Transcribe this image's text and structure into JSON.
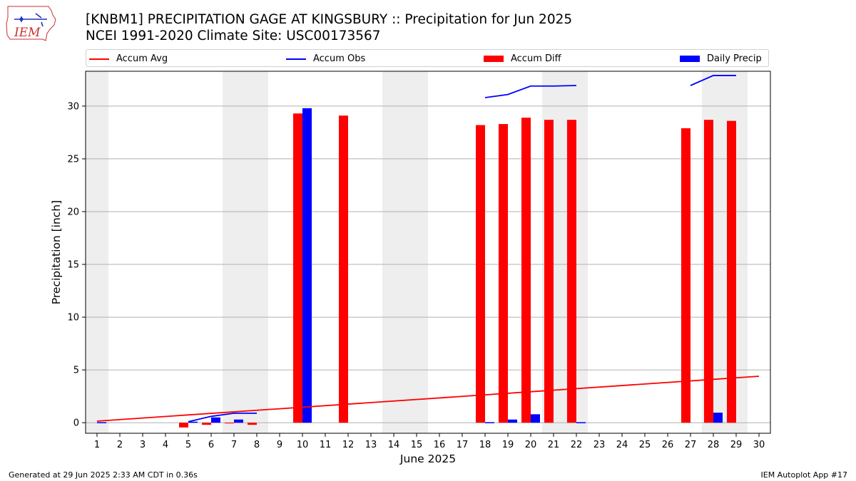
{
  "header": {
    "title_line1": "[KNBM1] PRECIPITATION GAGE AT KINGSBURY :: Precipitation for Jun 2025",
    "title_line2": "NCEI 1991-2020 Climate Site: USC00173567"
  },
  "logo": {
    "text": "IEM",
    "icon": "iem-iowa-logo"
  },
  "legend": {
    "items": [
      {
        "label": "Accum Avg",
        "kind": "line",
        "color": "#ff0000"
      },
      {
        "label": "Accum Obs",
        "kind": "line",
        "color": "#0000ff"
      },
      {
        "label": "Accum Diff",
        "kind": "bar",
        "color": "#ff0000"
      },
      {
        "label": "Daily Precip",
        "kind": "bar",
        "color": "#0000ff"
      }
    ]
  },
  "footer": {
    "left": "Generated at 29 Jun 2025 2:33 AM CDT in 0.36s",
    "right": "IEM Autoplot App #17"
  },
  "chart_data": {
    "type": "bar",
    "xlabel": "June 2025",
    "ylabel": "Precipitation [inch]",
    "xlim": [
      0.5,
      30.5
    ],
    "ylim": [
      -1.0,
      33.3
    ],
    "yticks": [
      0,
      5,
      10,
      15,
      20,
      25,
      30
    ],
    "xticks": [
      1,
      2,
      3,
      4,
      5,
      6,
      7,
      8,
      9,
      10,
      11,
      12,
      13,
      14,
      15,
      16,
      17,
      18,
      19,
      20,
      21,
      22,
      23,
      24,
      25,
      26,
      27,
      28,
      29,
      30
    ],
    "grid": "horizontal",
    "legend_position": "top",
    "weekend_shading": [
      [
        0.5,
        1.5
      ],
      [
        6.5,
        8.5
      ],
      [
        13.5,
        15.5
      ],
      [
        20.5,
        22.5
      ],
      [
        27.5,
        29.5
      ]
    ],
    "shading_color": "#eeeeee",
    "series": [
      {
        "name": "Accum Avg",
        "type": "line",
        "color": "#ff0000",
        "x": [
          1,
          30
        ],
        "y": [
          0.15,
          4.4
        ]
      },
      {
        "name": "Accum Obs",
        "type": "line",
        "color": "#0000ff",
        "segments": [
          {
            "x": [
              5,
              6,
              7,
              8
            ],
            "y": [
              0.1,
              0.6,
              0.9,
              0.9
            ]
          },
          {
            "x": [
              18,
              19,
              20,
              21,
              22
            ],
            "y": [
              30.8,
              31.1,
              31.9,
              31.9,
              31.95
            ]
          },
          {
            "x": [
              27,
              28,
              29
            ],
            "y": [
              31.95,
              32.9,
              32.9
            ]
          }
        ]
      },
      {
        "name": "Accum Diff",
        "type": "bar",
        "color": "#ff0000",
        "x": [
          5,
          6,
          7,
          8,
          10,
          12,
          18,
          19,
          20,
          21,
          22,
          27,
          28,
          29
        ],
        "y": [
          -0.45,
          -0.2,
          -0.05,
          -0.2,
          29.3,
          29.1,
          28.2,
          28.3,
          28.9,
          28.7,
          28.7,
          27.9,
          28.7,
          28.6
        ]
      },
      {
        "name": "Daily Precip",
        "type": "bar",
        "color": "#0000ff",
        "x": [
          1,
          5,
          6,
          7,
          10,
          18,
          19,
          20,
          22,
          28
        ],
        "y": [
          0.05,
          0.1,
          0.5,
          0.3,
          29.8,
          0.05,
          0.3,
          0.8,
          0.05,
          0.95
        ]
      }
    ]
  }
}
